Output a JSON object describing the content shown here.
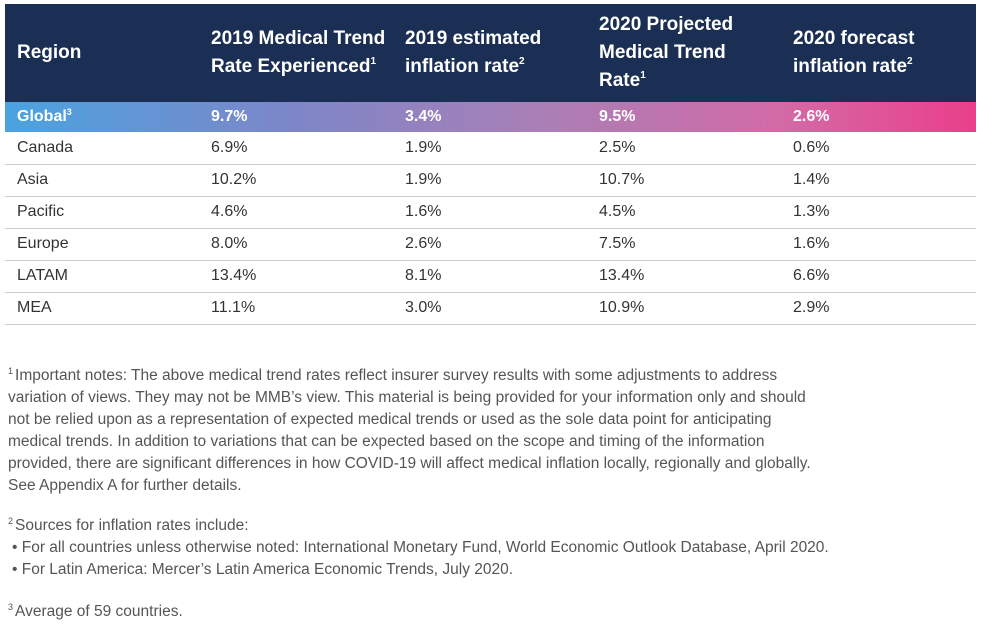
{
  "table": {
    "headers": [
      {
        "text": "Region",
        "sup": ""
      },
      {
        "line1": "2019 Medical Trend",
        "line2": "Rate Experienced",
        "sup": "1"
      },
      {
        "line1": "2019 estimated",
        "line2": "inflation rate",
        "sup": "2"
      },
      {
        "line1": "2020 Projected",
        "line2": "Medical Trend",
        "line3": "Rate",
        "sup": "1"
      },
      {
        "line1": "2020 forecast",
        "line2": "inflation rate",
        "sup": "2"
      }
    ],
    "global": {
      "region": "Global",
      "sup": "3",
      "values": [
        "9.7%",
        "3.4%",
        "9.5%",
        "2.6%"
      ]
    },
    "rows": [
      {
        "region": "Canada",
        "values": [
          "6.9%",
          "1.9%",
          "2.5%",
          "0.6%"
        ]
      },
      {
        "region": "Asia",
        "values": [
          "10.2%",
          "1.9%",
          "10.7%",
          "1.4%"
        ]
      },
      {
        "region": "Pacific",
        "values": [
          "4.6%",
          "1.6%",
          "4.5%",
          "1.3%"
        ]
      },
      {
        "region": "Europe",
        "values": [
          "8.0%",
          "2.6%",
          "7.5%",
          "1.6%"
        ]
      },
      {
        "region": "LATAM",
        "values": [
          "13.4%",
          "8.1%",
          "13.4%",
          "6.6%"
        ]
      },
      {
        "region": "MEA",
        "values": [
          "11.1%",
          "3.0%",
          "10.9%",
          "2.9%"
        ]
      }
    ]
  },
  "notes": {
    "note1_sup": "1",
    "note1_lines": [
      "Important notes: The above medical trend rates reflect insurer survey results with some adjustments to address",
      "variation of views. They may not be MMB’s view.  This material is being provided for your information only and should",
      "not be relied upon as a representation of expected medical trends or used as the sole data point for anticipating",
      "medical trends. In addition to variations that can be expected based on the scope and timing of the information",
      "provided, there are significant differences in how COVID-19 will affect medical inflation locally, regionally and globally.",
      "See Appendix A for further details."
    ],
    "note2_sup": "2",
    "note2_title": "Sources for inflation rates include:",
    "note2_bullets": [
      "• For all countries unless otherwise noted: International Monetary Fund, World Economic Outlook Database, April 2020.",
      "• For Latin America: Mercer’s Latin America Economic Trends, July 2020."
    ],
    "note3_sup": "3",
    "note3_text": "Average of 59 countries."
  }
}
